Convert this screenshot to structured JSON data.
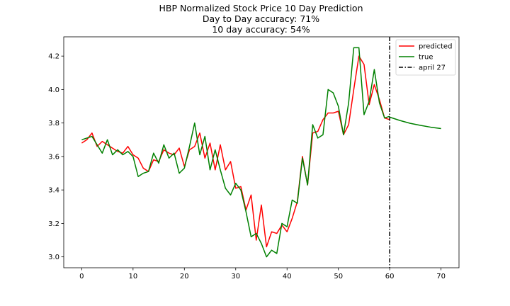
{
  "chart_data": {
    "type": "line",
    "title_lines": [
      "HBP Normalized Stock Price 10 Day Prediction",
      "Day to Day accuracy: 71%",
      "10 day accuracy: 54%"
    ],
    "xlabel": "",
    "ylabel": "",
    "xlim": [
      -3.5,
      73.5
    ],
    "ylim": [
      2.935,
      4.315
    ],
    "x_ticks": [
      0,
      10,
      20,
      30,
      40,
      50,
      60,
      70
    ],
    "y_ticks": [
      3.0,
      3.2,
      3.4,
      3.6,
      3.8,
      4.0,
      4.2
    ],
    "grid": false,
    "legend_position": "top-right",
    "series": [
      {
        "name": "predicted",
        "color": "#ff0000",
        "x": [
          0,
          1,
          2,
          3,
          4,
          5,
          6,
          7,
          8,
          9,
          10,
          11,
          12,
          13,
          14,
          15,
          16,
          17,
          18,
          19,
          20,
          21,
          22,
          23,
          24,
          25,
          26,
          27,
          28,
          29,
          30,
          31,
          32,
          33,
          34,
          35,
          36,
          37,
          38,
          39,
          40,
          41,
          42,
          43,
          44,
          45,
          46,
          47,
          48,
          49,
          50,
          51,
          52,
          53,
          54,
          55,
          56,
          57,
          58,
          59,
          60
        ],
        "y": [
          3.68,
          3.7,
          3.74,
          3.66,
          3.69,
          3.67,
          3.65,
          3.63,
          3.62,
          3.66,
          3.61,
          3.59,
          3.53,
          3.51,
          3.58,
          3.57,
          3.64,
          3.62,
          3.61,
          3.65,
          3.54,
          3.64,
          3.66,
          3.74,
          3.59,
          3.68,
          3.52,
          3.67,
          3.52,
          3.57,
          3.41,
          3.42,
          3.28,
          3.37,
          3.1,
          3.31,
          3.06,
          3.15,
          3.14,
          3.19,
          3.15,
          3.23,
          3.33,
          3.6,
          3.43,
          3.74,
          3.75,
          3.82,
          3.86,
          3.86,
          3.87,
          3.73,
          3.79,
          4.0,
          4.2,
          4.15,
          3.91,
          4.03,
          3.94,
          3.83,
          3.82
        ]
      },
      {
        "name": "true",
        "color": "#008000",
        "x": [
          0,
          1,
          2,
          3,
          4,
          5,
          6,
          7,
          8,
          9,
          10,
          11,
          12,
          13,
          14,
          15,
          16,
          17,
          18,
          19,
          20,
          21,
          22,
          23,
          24,
          25,
          26,
          27,
          28,
          29,
          30,
          31,
          32,
          33,
          34,
          35,
          36,
          37,
          38,
          39,
          40,
          41,
          42,
          43,
          44,
          45,
          46,
          47,
          48,
          49,
          50,
          51,
          52,
          53,
          54,
          55,
          56,
          57,
          58,
          59,
          60
        ],
        "y": [
          3.7,
          3.71,
          3.72,
          3.67,
          3.62,
          3.7,
          3.61,
          3.64,
          3.61,
          3.63,
          3.6,
          3.48,
          3.5,
          3.51,
          3.62,
          3.56,
          3.67,
          3.59,
          3.62,
          3.5,
          3.53,
          3.66,
          3.8,
          3.61,
          3.72,
          3.52,
          3.64,
          3.52,
          3.41,
          3.37,
          3.44,
          3.4,
          3.27,
          3.12,
          3.14,
          3.08,
          3.0,
          3.04,
          3.02,
          3.2,
          3.18,
          3.34,
          3.32,
          3.59,
          3.43,
          3.79,
          3.71,
          3.73,
          4.0,
          3.98,
          3.9,
          3.73,
          3.92,
          4.25,
          4.25,
          3.85,
          3.93,
          4.12,
          3.92,
          3.83,
          3.84
        ]
      },
      {
        "name": "",
        "color": "#008000",
        "x": [
          60,
          62,
          64,
          66,
          68,
          70
        ],
        "y": [
          3.835,
          3.815,
          3.798,
          3.786,
          3.775,
          3.767
        ]
      }
    ],
    "vline": {
      "name": "april 27",
      "x": 60,
      "color": "#000000",
      "style": "dashdot"
    }
  }
}
